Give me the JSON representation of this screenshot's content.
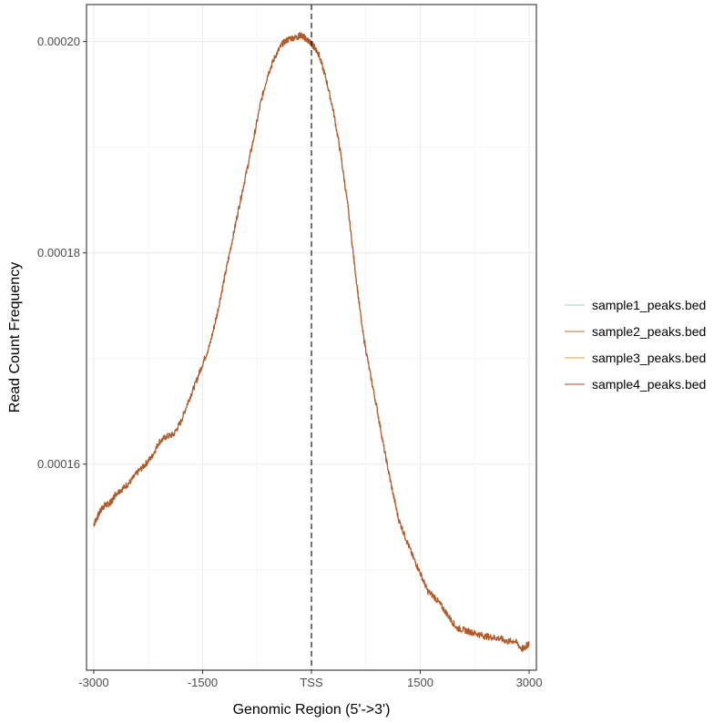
{
  "chart_data": {
    "type": "line",
    "xlabel": "Genomic Region (5'->3')",
    "ylabel": "Read Count Frequency",
    "xlim": [
      -3100,
      3100
    ],
    "ylim": [
      0.0001405,
      0.0002035
    ],
    "x_ticks": [
      {
        "value": -3000,
        "label": "-3000"
      },
      {
        "value": -1500,
        "label": "-1500"
      },
      {
        "value": 0,
        "label": "TSS"
      },
      {
        "value": 1500,
        "label": "1500"
      },
      {
        "value": 3000,
        "label": "3000"
      }
    ],
    "y_ticks": [
      {
        "value": 0.00016,
        "label": "0.00016"
      },
      {
        "value": 0.00018,
        "label": "0.00018"
      },
      {
        "value": 0.0002,
        "label": "0.00020"
      }
    ],
    "y_minor_gridlines": [
      0.00015,
      0.00017,
      0.00019
    ],
    "x_minor_gridlines": [
      -2250,
      -750,
      750,
      2250
    ],
    "grid": true,
    "vline": {
      "x": 0,
      "style": "dashed"
    },
    "legend_position": "right",
    "profile": {
      "x": [
        -3000,
        -2950,
        -2900,
        -2850,
        -2800,
        -2750,
        -2700,
        -2600,
        -2500,
        -2400,
        -2300,
        -2200,
        -2100,
        -2000,
        -1900,
        -1800,
        -1700,
        -1600,
        -1500,
        -1400,
        -1300,
        -1200,
        -1100,
        -1000,
        -900,
        -800,
        -700,
        -600,
        -500,
        -400,
        -300,
        -200,
        -150,
        -100,
        -50,
        0,
        50,
        100,
        200,
        300,
        400,
        500,
        600,
        700,
        800,
        900,
        1000,
        1100,
        1200,
        1300,
        1400,
        1500,
        1600,
        1700,
        1800,
        1900,
        2000,
        2100,
        2200,
        2300,
        2400,
        2500,
        2600,
        2700,
        2800,
        2900,
        2950,
        3000
      ],
      "y": [
        0.0001543,
        0.000155,
        0.0001557,
        0.0001561,
        0.0001562,
        0.0001565,
        0.0001572,
        0.0001577,
        0.0001583,
        0.0001592,
        0.0001599,
        0.0001607,
        0.0001621,
        0.0001626,
        0.0001628,
        0.000164,
        0.0001659,
        0.0001676,
        0.0001695,
        0.0001713,
        0.0001742,
        0.0001776,
        0.0001809,
        0.0001843,
        0.0001875,
        0.0001907,
        0.0001942,
        0.0001969,
        0.0001986,
        0.0001998,
        0.0002003,
        0.0002004,
        0.0002006,
        0.0002004,
        0.0002001,
        0.0001998,
        0.0001994,
        0.0001988,
        0.0001965,
        0.0001935,
        0.0001895,
        0.0001845,
        0.0001785,
        0.0001728,
        0.0001689,
        0.0001654,
        0.0001615,
        0.000158,
        0.0001548,
        0.000153,
        0.0001512,
        0.0001497,
        0.000148,
        0.0001474,
        0.0001465,
        0.0001455,
        0.0001445,
        0.0001443,
        0.0001441,
        0.0001439,
        0.0001437,
        0.0001436,
        0.0001435,
        0.0001432,
        0.0001433,
        0.0001425,
        0.0001427,
        0.0001431
      ]
    },
    "series": [
      {
        "name": "sample1_peaks.bed",
        "color": "#a9c4d8"
      },
      {
        "name": "sample2_peaks.bed",
        "color": "#c0703c"
      },
      {
        "name": "sample3_peaks.bed",
        "color": "#d8a040"
      },
      {
        "name": "sample4_peaks.bed",
        "color": "#a84420"
      }
    ],
    "colors": {
      "panel_border": "#333333",
      "grid_major": "#ebebeb",
      "grid_minor": "#f2f2f2",
      "tick": "#333333",
      "vline": "#000000",
      "profile": "#b05a2a"
    }
  }
}
